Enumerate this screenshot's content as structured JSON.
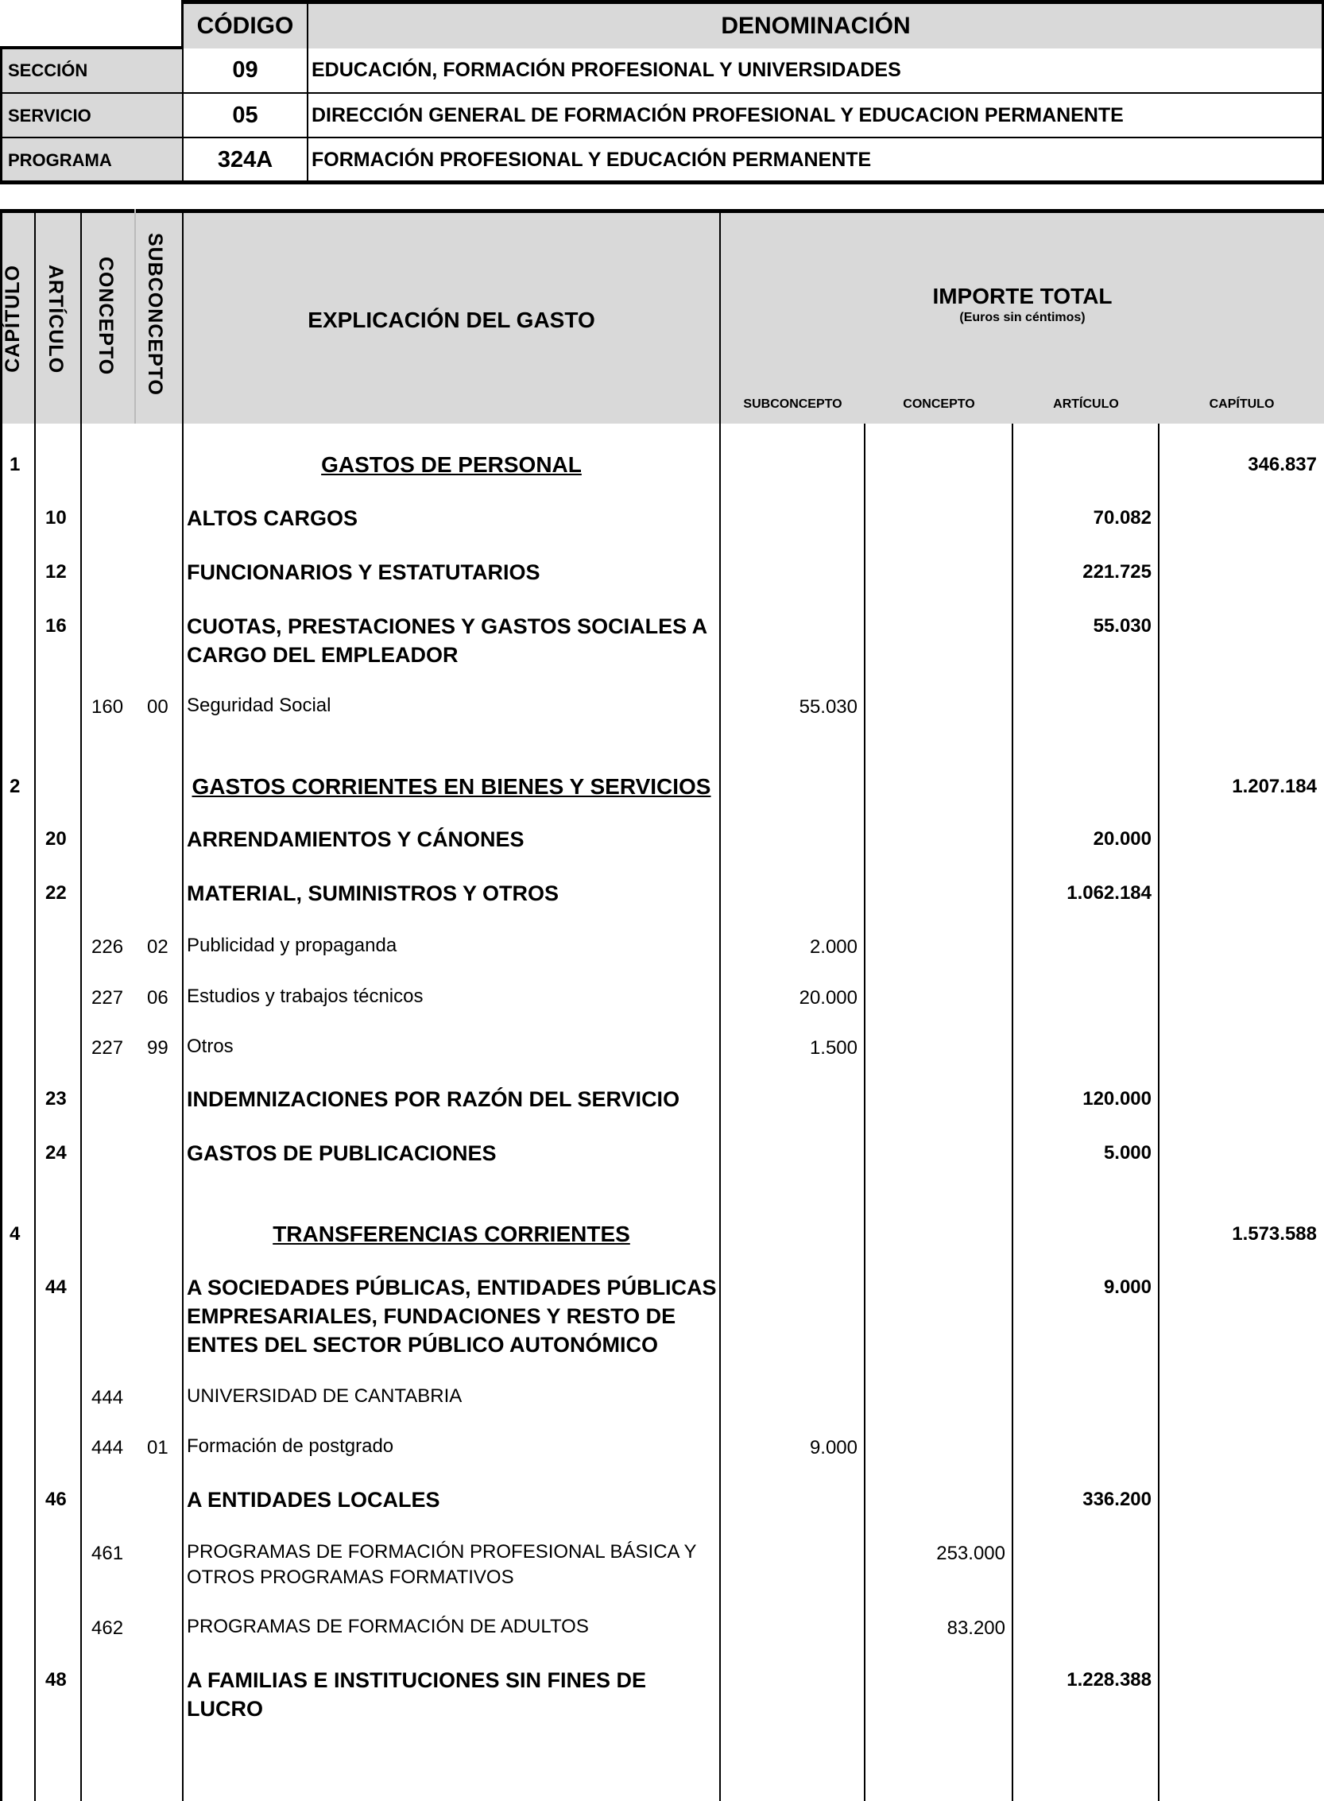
{
  "header": {
    "codigo_label": "CÓDIGO",
    "denominacion_label": "DENOMINACIÓN",
    "rows": [
      {
        "label": "SECCIÓN",
        "code": "09",
        "name": "EDUCACIÓN, FORMACIÓN PROFESIONAL Y UNIVERSIDADES"
      },
      {
        "label": "SERVICIO",
        "code": "05",
        "name": "DIRECCIÓN GENERAL DE FORMACIÓN PROFESIONAL Y EDUCACION PERMANENTE"
      },
      {
        "label": "PROGRAMA",
        "code": "324A",
        "name": "FORMACIÓN PROFESIONAL Y EDUCACIÓN PERMANENTE"
      }
    ]
  },
  "table": {
    "col_capitulo": "CAPÍTULO",
    "col_articulo": "ARTÍCULO",
    "col_concepto": "CONCEPTO",
    "col_subconcepto": "SUBCONCEPTO",
    "col_explicacion": "EXPLICACIÓN DEL GASTO",
    "importe_title": "IMPORTE TOTAL",
    "importe_subtitle": "(Euros sin céntimos)",
    "sub_subconcepto": "SUBCONCEPTO",
    "sub_concepto": "CONCEPTO",
    "sub_articulo": "ARTÍCULO",
    "sub_capitulo": "CAPÍTULO",
    "rows": [
      {
        "cap": "1",
        "text": "GASTOS DE PERSONAL",
        "level": "capitulo",
        "capitulo_amt": "346.837"
      },
      {
        "art": "10",
        "text": "ALTOS CARGOS",
        "level": "articulo",
        "articulo_amt": "70.082"
      },
      {
        "art": "12",
        "text": "FUNCIONARIOS Y ESTATUTARIOS",
        "level": "articulo",
        "articulo_amt": "221.725"
      },
      {
        "art": "16",
        "text": "CUOTAS, PRESTACIONES Y GASTOS SOCIALES A CARGO DEL EMPLEADOR",
        "level": "articulo",
        "articulo_amt": "55.030"
      },
      {
        "con": "160",
        "sub": "00",
        "text": "Seguridad Social",
        "level": "sub",
        "sub_amt": "55.030"
      },
      {
        "cap": "2",
        "text": "GASTOS CORRIENTES EN BIENES Y SERVICIOS",
        "level": "capitulo",
        "capitulo_amt": "1.207.184"
      },
      {
        "art": "20",
        "text": "ARRENDAMIENTOS Y CÁNONES",
        "level": "articulo",
        "articulo_amt": "20.000"
      },
      {
        "art": "22",
        "text": "MATERIAL, SUMINISTROS Y OTROS",
        "level": "articulo",
        "articulo_amt": "1.062.184"
      },
      {
        "con": "226",
        "sub": "02",
        "text": "Publicidad y propaganda",
        "level": "sub",
        "sub_amt": "2.000"
      },
      {
        "con": "227",
        "sub": "06",
        "text": "Estudios y trabajos técnicos",
        "level": "sub",
        "sub_amt": "20.000"
      },
      {
        "con": "227",
        "sub": "99",
        "text": "Otros",
        "level": "sub",
        "sub_amt": "1.500"
      },
      {
        "art": "23",
        "text": "INDEMNIZACIONES POR RAZÓN DEL SERVICIO",
        "level": "articulo",
        "articulo_amt": "120.000"
      },
      {
        "art": "24",
        "text": "GASTOS DE PUBLICACIONES",
        "level": "articulo",
        "articulo_amt": "5.000"
      },
      {
        "cap": "4",
        "text": "TRANSFERENCIAS CORRIENTES",
        "level": "capitulo",
        "capitulo_amt": "1.573.588"
      },
      {
        "art": "44",
        "text": "A SOCIEDADES PÚBLICAS, ENTIDADES PÚBLICAS EMPRESARIALES, FUNDACIONES Y RESTO DE ENTES DEL SECTOR PÚBLICO AUTONÓMICO",
        "level": "articulo",
        "articulo_amt": "9.000"
      },
      {
        "con": "444",
        "text": "UNIVERSIDAD DE CANTABRIA",
        "level": "sub"
      },
      {
        "con": "444",
        "sub": "01",
        "text": "Formación de postgrado",
        "level": "sub",
        "sub_amt": "9.000"
      },
      {
        "art": "46",
        "text": "A ENTIDADES LOCALES",
        "level": "articulo",
        "articulo_amt": "336.200"
      },
      {
        "con": "461",
        "text": "PROGRAMAS DE FORMACIÓN PROFESIONAL BÁSICA Y OTROS PROGRAMAS FORMATIVOS",
        "level": "sub",
        "concepto_amt": "253.000"
      },
      {
        "con": "462",
        "text": "PROGRAMAS DE FORMACIÓN DE ADULTOS",
        "level": "sub",
        "concepto_amt": "83.200"
      },
      {
        "art": "48",
        "text": "A FAMILIAS E INSTITUCIONES SIN FINES DE LUCRO",
        "level": "articulo",
        "articulo_amt": "1.228.388"
      }
    ]
  }
}
